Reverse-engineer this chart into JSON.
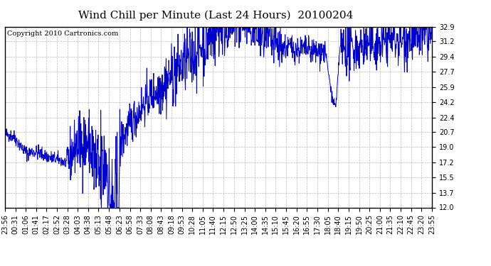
{
  "title": "Wind Chill per Minute (Last 24 Hours)  20100204",
  "copyright": "Copyright 2010 Cartronics.com",
  "line_color": "#0000CC",
  "bg_color": "#ffffff",
  "plot_bg_color": "#ffffff",
  "grid_color": "#aaaaaa",
  "ylim": [
    12.0,
    32.9
  ],
  "yticks": [
    12.0,
    13.7,
    15.5,
    17.2,
    19.0,
    20.7,
    22.4,
    24.2,
    25.9,
    27.7,
    29.4,
    31.2,
    32.9
  ],
  "xtick_labels": [
    "23:56",
    "00:31",
    "01:06",
    "01:41",
    "02:17",
    "02:52",
    "03:28",
    "04:03",
    "04:38",
    "05:13",
    "05:48",
    "06:23",
    "06:58",
    "07:33",
    "08:08",
    "08:43",
    "09:18",
    "09:53",
    "10:28",
    "11:05",
    "11:40",
    "12:15",
    "12:50",
    "13:25",
    "14:00",
    "14:35",
    "15:10",
    "15:45",
    "16:20",
    "16:55",
    "17:30",
    "18:05",
    "18:40",
    "19:15",
    "19:50",
    "20:25",
    "21:00",
    "21:35",
    "22:10",
    "22:45",
    "23:20",
    "23:55"
  ],
  "title_fontsize": 11,
  "copyright_fontsize": 7,
  "tick_fontsize": 7
}
